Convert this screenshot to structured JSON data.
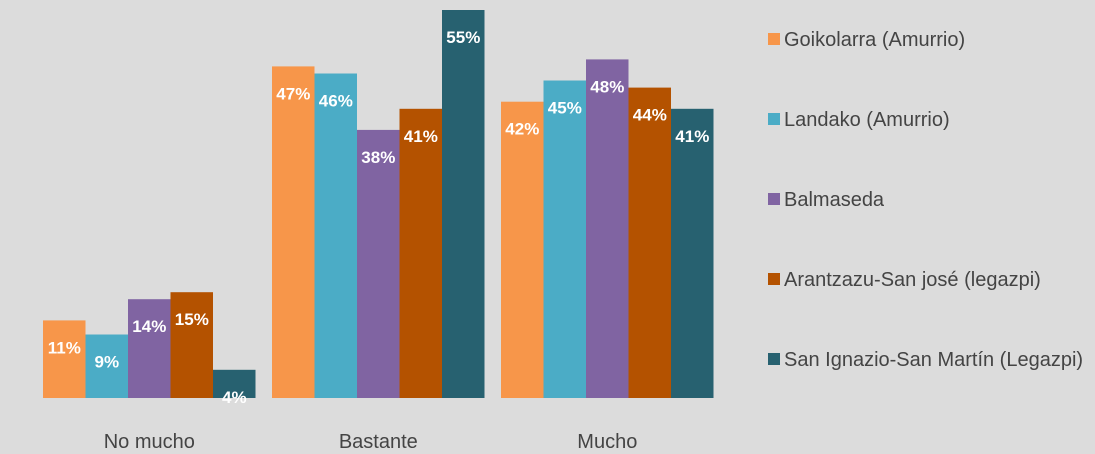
{
  "chart_data": {
    "type": "bar",
    "categories": [
      "No mucho",
      "Bastante",
      "Mucho"
    ],
    "series": [
      {
        "name": "Goikolarra (Amurrio)",
        "color": "#f7964a",
        "values": [
          11,
          47,
          42
        ],
        "labels": [
          "11%",
          "47%",
          "42%"
        ]
      },
      {
        "name": "Landako (Amurrio)",
        "color": "#4bacc6",
        "values": [
          9,
          46,
          45
        ],
        "labels": [
          "9%",
          "46%",
          "45%"
        ]
      },
      {
        "name": "Balmaseda",
        "color": "#8064a2",
        "values": [
          14,
          38,
          48
        ],
        "labels": [
          "14%",
          "38%",
          "48%"
        ]
      },
      {
        "name": "Arantzazu-San josé (legazpi)",
        "color": "#b45200",
        "values": [
          15,
          41,
          44
        ],
        "labels": [
          "15%",
          "41%",
          "44%"
        ]
      },
      {
        "name": "San Ignazio-San Martín (Legazpi)",
        "color": "#276170",
        "values": [
          4,
          55,
          41
        ],
        "labels": [
          "4%",
          "55%",
          "41%"
        ]
      }
    ],
    "ylim": [
      0,
      55
    ],
    "grid": false,
    "legend_position": "right"
  }
}
